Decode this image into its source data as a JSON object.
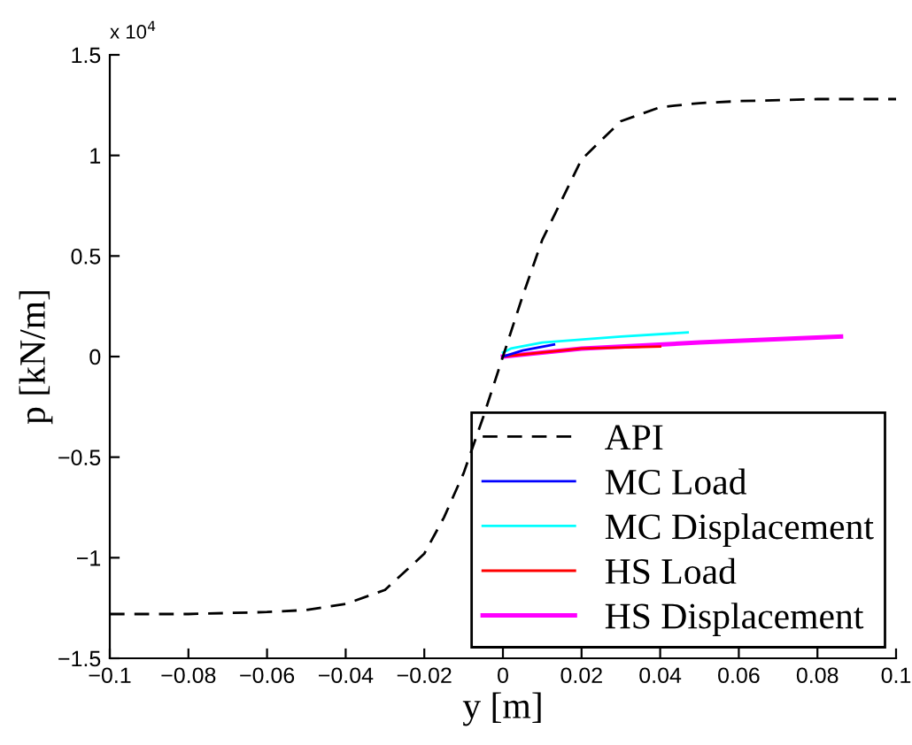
{
  "chart_data": {
    "type": "line",
    "xlabel": "y [m]",
    "ylabel": "p [kN/m]",
    "annotations": [
      "x 10$^{4}$"
    ],
    "xlim": [
      -0.1,
      0.1
    ],
    "xticks": [
      {
        "value": -0.1,
        "label": "−0.1"
      },
      {
        "value": -0.08,
        "label": "−0.08"
      },
      {
        "value": -0.06,
        "label": "−0.06"
      },
      {
        "value": -0.04,
        "label": "−0.04"
      },
      {
        "value": -0.02,
        "label": "−0.02"
      },
      0,
      0.02,
      0.04,
      0.06,
      0.08,
      0.1
    ],
    "ylim": [
      -1.5,
      1.5
    ],
    "yticks": [
      {
        "value": -1.5,
        "label": "−1.5"
      },
      {
        "value": -1,
        "label": "−1"
      },
      {
        "value": -0.5,
        "label": "−0.5"
      },
      0,
      0.5,
      1,
      1.5
    ],
    "grid": false,
    "legend": "bottom right",
    "series": [
      {
        "name": "API",
        "color": "#000000",
        "line_style": "dashed",
        "x": [
          -0.1,
          -0.08,
          -0.06,
          -0.05,
          -0.04,
          -0.03,
          -0.02,
          -0.015,
          -0.01,
          -0.005,
          0,
          0.005,
          0.01,
          0.015,
          0.02,
          0.03,
          0.04,
          0.05,
          0.06,
          0.08,
          0.1
        ],
        "values": [
          -1.28,
          -1.28,
          -1.27,
          -1.26,
          -1.23,
          -1.16,
          -0.98,
          -0.8,
          -0.58,
          -0.3,
          0,
          0.3,
          0.58,
          0.78,
          0.98,
          1.17,
          1.24,
          1.26,
          1.27,
          1.28,
          1.28
        ]
      },
      {
        "name": "MC Load",
        "color": "#0000ff",
        "x": [
          0,
          0.005,
          0.013
        ],
        "values": [
          0,
          0.03,
          0.06
        ]
      },
      {
        "name": "MC Displacement",
        "color": "#00ffff",
        "x": [
          0,
          0.002,
          0.01,
          0.03,
          0.047
        ],
        "values": [
          0.02,
          0.04,
          0.07,
          0.1,
          0.12
        ]
      },
      {
        "name": "HS Load",
        "color": "#ff0000",
        "x": [
          0,
          0.02,
          0.04
        ],
        "values": [
          0,
          0.04,
          0.05
        ]
      },
      {
        "name": "HS Displacement",
        "color": "#ff00ff",
        "x": [
          0,
          0.02,
          0.05,
          0.086
        ],
        "values": [
          0,
          0.04,
          0.07,
          0.1
        ]
      }
    ]
  }
}
